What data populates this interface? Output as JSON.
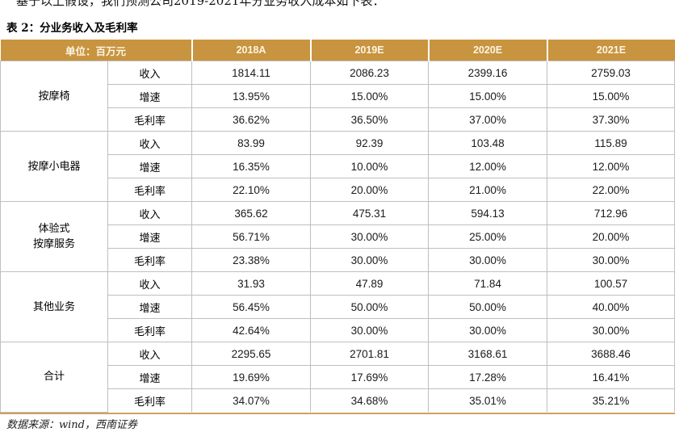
{
  "intro_text": "基于以上假设，我们预测公司2019-2021年分业务收入成本如下表：",
  "table_title": "表 2：分业务收入及毛利率",
  "source_note": "数据来源：wind，西南证券",
  "colors": {
    "header_bg": "#C8943F",
    "header_text": "#FCF5E6",
    "grid_line": "#BFBFBF",
    "table_bottom_border": "#CFA258",
    "body_text": "#1A1A1A"
  },
  "table": {
    "type": "table",
    "unit_label": "单位：百万元",
    "columns": [
      "2018A",
      "2019E",
      "2020E",
      "2021E"
    ],
    "groups": [
      {
        "name": "按摩椅",
        "rows": [
          {
            "metric": "收入",
            "values": [
              "1814.11",
              "2086.23",
              "2399.16",
              "2759.03"
            ]
          },
          {
            "metric": "增速",
            "values": [
              "13.95%",
              "15.00%",
              "15.00%",
              "15.00%"
            ]
          },
          {
            "metric": "毛利率",
            "values": [
              "36.62%",
              "36.50%",
              "37.00%",
              "37.30%"
            ]
          }
        ]
      },
      {
        "name": "按摩小电器",
        "rows": [
          {
            "metric": "收入",
            "values": [
              "83.99",
              "92.39",
              "103.48",
              "115.89"
            ]
          },
          {
            "metric": "增速",
            "values": [
              "16.35%",
              "10.00%",
              "12.00%",
              "12.00%"
            ]
          },
          {
            "metric": "毛利率",
            "values": [
              "22.10%",
              "20.00%",
              "21.00%",
              "22.00%"
            ]
          }
        ]
      },
      {
        "name": "体验式\n按摩服务",
        "rows": [
          {
            "metric": "收入",
            "values": [
              "365.62",
              "475.31",
              "594.13",
              "712.96"
            ]
          },
          {
            "metric": "增速",
            "values": [
              "56.71%",
              "30.00%",
              "25.00%",
              "20.00%"
            ]
          },
          {
            "metric": "毛利率",
            "values": [
              "23.38%",
              "30.00%",
              "30.00%",
              "30.00%"
            ]
          }
        ]
      },
      {
        "name": "其他业务",
        "rows": [
          {
            "metric": "收入",
            "values": [
              "31.93",
              "47.89",
              "71.84",
              "100.57"
            ]
          },
          {
            "metric": "增速",
            "values": [
              "56.45%",
              "50.00%",
              "50.00%",
              "40.00%"
            ]
          },
          {
            "metric": "毛利率",
            "values": [
              "42.64%",
              "30.00%",
              "30.00%",
              "30.00%"
            ]
          }
        ]
      },
      {
        "name": "合计",
        "rows": [
          {
            "metric": "收入",
            "values": [
              "2295.65",
              "2701.81",
              "3168.61",
              "3688.46"
            ]
          },
          {
            "metric": "增速",
            "values": [
              "19.69%",
              "17.69%",
              "17.28%",
              "16.41%"
            ]
          },
          {
            "metric": "毛利率",
            "values": [
              "34.07%",
              "34.68%",
              "35.01%",
              "35.21%"
            ]
          }
        ]
      }
    ]
  }
}
